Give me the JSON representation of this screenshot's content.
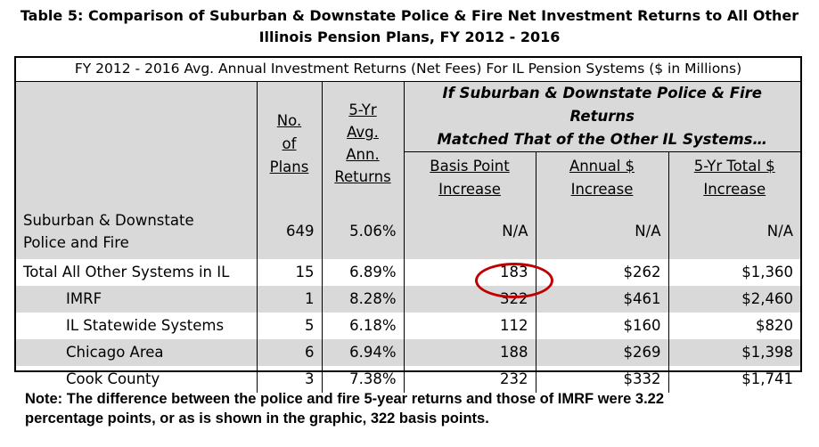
{
  "title_line1": "Table 5: Comparison of Suburban & Downstate Police & Fire Net Investment Returns to All Other",
  "title_line2": "Illinois Pension Plans, FY 2012 - 2016",
  "caption": "FY 2012 - 2016 Avg. Annual Investment Returns (Net Fees) For IL Pension Systems ($ in Millions)",
  "headers": {
    "plans": [
      "No.",
      "of",
      "Plans"
    ],
    "returns": [
      "5-Yr",
      "Avg.",
      "Ann.",
      "Returns"
    ],
    "banner": [
      "If Suburban & Downstate Police & Fire Returns",
      "Matched That of the Other IL Systems…"
    ],
    "bp": [
      "Basis Point",
      "Increase"
    ],
    "annual": [
      "Annual $",
      "Increase"
    ],
    "total": [
      "5-Yr Total $",
      "Increase"
    ]
  },
  "rows": [
    {
      "name1": "Suburban & Downstate",
      "name2": "Police and Fire",
      "plans": "649",
      "returns": "5.06%",
      "bp": "N/A",
      "annual": "N/A",
      "total": "N/A"
    },
    {
      "name1": "Total All Other Systems in IL",
      "plans": "15",
      "returns": "6.89%",
      "bp": "183",
      "annual": "$262",
      "total": "$1,360"
    },
    {
      "name1": "IMRF",
      "plans": "1",
      "returns": "8.28%",
      "bp": "322",
      "annual": "$461",
      "total": "$2,460"
    },
    {
      "name1": "IL Statewide Systems",
      "plans": "5",
      "returns": "6.18%",
      "bp": "112",
      "annual": "$160",
      "total": "$820"
    },
    {
      "name1": "Chicago Area",
      "plans": "6",
      "returns": "6.94%",
      "bp": "188",
      "annual": "$269",
      "total": "$1,398"
    },
    {
      "name1": "Cook County",
      "plans": "3",
      "returns": "7.38%",
      "bp": "232",
      "annual": "$332",
      "total": "$1,741"
    }
  ],
  "note_line1": "Note: The difference between the police and fire 5-year returns and those of IMRF were 3.22",
  "note_line2": "percentage points, or as is shown in the graphic, 322 basis points.",
  "highlight_color": "#c00000"
}
